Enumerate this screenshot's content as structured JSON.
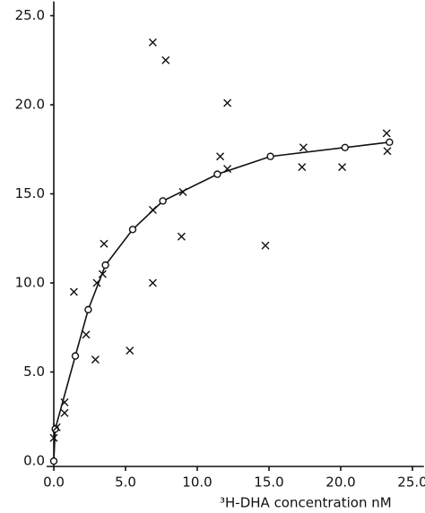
{
  "chart_data": {
    "type": "scatter",
    "x_label": "³H-DHA concentration nM",
    "xlim": [
      -0.5,
      25.8
    ],
    "ylim": [
      -0.3,
      25.8
    ],
    "xticks": [
      {
        "value": 0,
        "label": "0.0"
      },
      {
        "value": 5,
        "label": "5.0"
      },
      {
        "value": 10,
        "label": "10.0"
      },
      {
        "value": 15,
        "label": "15.0"
      },
      {
        "value": 20,
        "label": "20.0"
      },
      {
        "value": 25,
        "label": "25.0"
      }
    ],
    "yticks": [
      {
        "value": 0,
        "label": "0.0"
      },
      {
        "value": 5,
        "label": "5.0"
      },
      {
        "value": 10,
        "label": "10.0"
      },
      {
        "value": 15,
        "label": "15.0"
      },
      {
        "value": 20,
        "label": "20.0"
      },
      {
        "value": 25,
        "label": "25.0"
      }
    ],
    "grid": false,
    "series": [
      {
        "marker": "circle",
        "connect": true,
        "color": "#111111",
        "x": [
          0,
          0.1,
          1.5,
          2.4,
          3.6,
          5.5,
          7.6,
          11.4,
          15.1,
          20.3,
          23.4
        ],
        "values": [
          0,
          1.8,
          5.9,
          8.5,
          11.0,
          13.0,
          14.6,
          16.1,
          17.1,
          17.6,
          17.9
        ]
      },
      {
        "marker": "cross",
        "connect": false,
        "color": "#111111",
        "x": [
          0,
          0.2,
          0.75,
          0.75,
          1.4,
          2.25,
          2.9,
          3.0,
          3.4,
          3.5,
          5.3,
          6.9,
          7.8,
          6.9,
          6.9,
          9.0,
          8.9,
          11.6,
          12.1,
          12.1,
          14.75,
          17.4,
          17.3,
          20.1,
          23.2,
          23.25
        ],
        "values": [
          1.3,
          1.9,
          2.7,
          3.3,
          9.5,
          7.1,
          5.7,
          10.0,
          10.5,
          12.2,
          6.2,
          23.5,
          22.5,
          10.0,
          14.1,
          15.1,
          12.6,
          17.1,
          20.1,
          16.4,
          12.1,
          17.6,
          16.5,
          16.5,
          18.4,
          17.4
        ]
      }
    ]
  }
}
